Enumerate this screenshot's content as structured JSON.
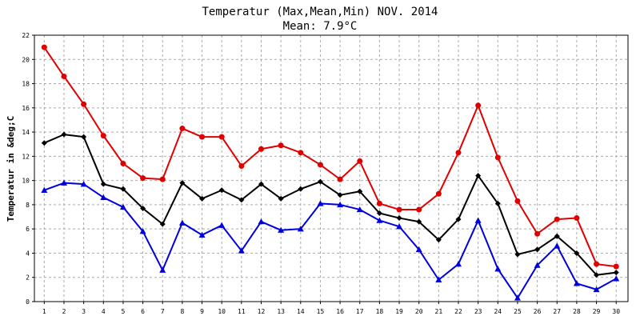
{
  "chart_data": {
    "type": "line",
    "title": "Temperatur (Max,Mean,Min) NOV. 2014",
    "subtitle": "Mean: 7.9°C",
    "xlabel": "",
    "ylabel": "Temperatur in &deg;C",
    "x": [
      1,
      2,
      3,
      4,
      5,
      6,
      7,
      8,
      9,
      10,
      11,
      12,
      13,
      14,
      15,
      16,
      17,
      18,
      19,
      20,
      21,
      22,
      23,
      24,
      25,
      26,
      27,
      28,
      29,
      30
    ],
    "ylim": [
      0,
      22
    ],
    "yticks": [
      0,
      2,
      4,
      6,
      8,
      10,
      12,
      14,
      16,
      18,
      20,
      22
    ],
    "grid": true,
    "series": [
      {
        "color": "#e00000",
        "marker": "circle",
        "values": [
          21.0,
          18.6,
          16.3,
          13.7,
          11.4,
          10.2,
          10.1,
          14.3,
          13.6,
          13.6,
          11.2,
          12.6,
          12.9,
          12.3,
          11.3,
          10.1,
          11.6,
          8.1,
          7.6,
          7.6,
          8.9,
          12.3,
          16.2,
          11.9,
          8.3,
          5.6,
          6.8,
          6.9,
          3.1,
          2.9
        ]
      },
      {
        "color": "#000000",
        "marker": "diamond",
        "values": [
          13.1,
          13.8,
          13.6,
          9.7,
          9.3,
          7.7,
          6.4,
          9.8,
          8.5,
          9.2,
          8.4,
          9.7,
          8.5,
          9.3,
          9.9,
          8.8,
          9.1,
          7.3,
          6.9,
          6.6,
          5.1,
          6.8,
          10.4,
          8.1,
          3.9,
          4.3,
          5.4,
          4.0,
          2.2,
          2.4
        ]
      },
      {
        "color": "#0000dd",
        "marker": "triangle",
        "values": [
          9.2,
          9.8,
          9.7,
          8.6,
          7.8,
          5.8,
          2.6,
          6.5,
          5.5,
          6.3,
          4.2,
          6.6,
          5.9,
          6.0,
          8.1,
          8.0,
          7.6,
          6.7,
          6.2,
          4.3,
          1.8,
          3.1,
          6.7,
          2.7,
          0.3,
          3.0,
          4.6,
          1.5,
          1.0,
          1.9
        ]
      }
    ]
  }
}
